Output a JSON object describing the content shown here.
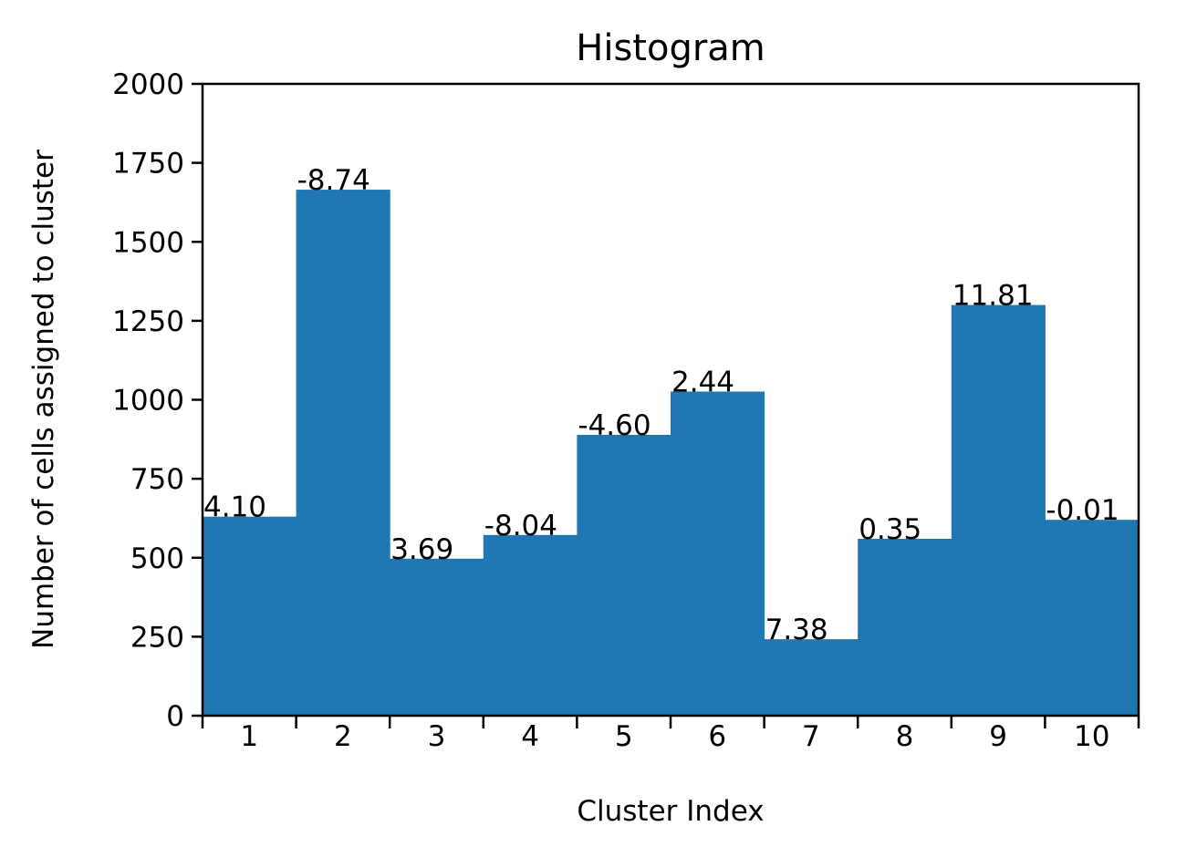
{
  "chart_data": {
    "type": "bar",
    "title": "Histogram",
    "xlabel": "Cluster Index",
    "ylabel": "Number of cells assigned to cluster",
    "categories": [
      "1",
      "2",
      "3",
      "4",
      "5",
      "6",
      "7",
      "8",
      "9",
      "10"
    ],
    "values": [
      630,
      1665,
      497,
      572,
      889,
      1026,
      242,
      560,
      1300,
      620
    ],
    "data_labels": [
      "4.10",
      "-8.74",
      "3.69",
      "-8.04",
      "-4.60",
      "2.44",
      "7.38",
      "0.35",
      "11.81",
      "-0.01"
    ],
    "ylim": [
      0,
      2000
    ],
    "yticks": [
      0,
      250,
      500,
      750,
      1000,
      1250,
      1500,
      1750,
      2000
    ],
    "grid": false,
    "bar_color": "#1f77b4"
  }
}
